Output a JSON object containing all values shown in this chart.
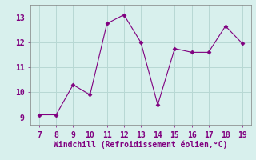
{
  "x": [
    7,
    8,
    9,
    10,
    11,
    12,
    13,
    14,
    15,
    16,
    17,
    18,
    19
  ],
  "y": [
    9.1,
    9.1,
    10.3,
    9.9,
    12.75,
    13.1,
    12.0,
    9.5,
    11.75,
    11.6,
    11.6,
    12.65,
    11.95
  ],
  "xlabel": "Windchill (Refroidissement éolien,°C)",
  "line_color": "#800080",
  "marker": "D",
  "marker_size": 2.5,
  "bg_color": "#d8f0ed",
  "grid_color": "#b8d8d4",
  "xlim": [
    6.5,
    19.5
  ],
  "ylim": [
    8.7,
    13.5
  ],
  "xticks": [
    7,
    8,
    9,
    10,
    11,
    12,
    13,
    14,
    15,
    16,
    17,
    18,
    19
  ],
  "yticks": [
    9,
    10,
    11,
    12,
    13
  ],
  "tick_fontsize": 7,
  "xlabel_fontsize": 7,
  "label_color": "#800080",
  "spine_color": "#808080",
  "linewidth": 0.8
}
